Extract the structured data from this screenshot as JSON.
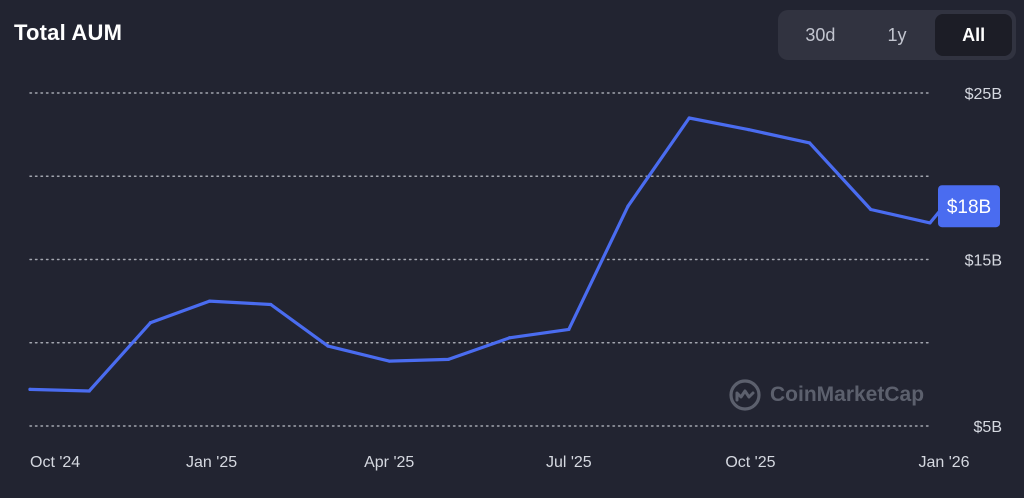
{
  "header": {
    "title": "Total AUM"
  },
  "range_tabs": [
    {
      "label": "30d",
      "active": false
    },
    {
      "label": "1y",
      "active": false
    },
    {
      "label": "All",
      "active": true
    }
  ],
  "watermark": {
    "text": "CoinMarketCap",
    "icon": "coinmarketcap-logo-icon"
  },
  "colors": {
    "background": "#222431",
    "line": "#4a6cf0",
    "badge": "#4a6cf0",
    "grid": "#cfd2da",
    "text": "#d5d8e0"
  },
  "chart_data": {
    "type": "line",
    "title": "Total AUM",
    "y_unit": "USD billions",
    "ylim": [
      5,
      25
    ],
    "y_ticks": [
      {
        "value": 25,
        "label": "$25B"
      },
      {
        "value": 15,
        "label": "$15B"
      },
      {
        "value": 5,
        "label": "$5B"
      }
    ],
    "y_gridlines": [
      25,
      20,
      15,
      10,
      5
    ],
    "grid": "horizontal dotted",
    "x_ticks": [
      {
        "date": "2024-10-01",
        "label": "Oct '24"
      },
      {
        "date": "2025-01-01",
        "label": "Jan '25"
      },
      {
        "date": "2025-04-01",
        "label": "Apr '25"
      },
      {
        "date": "2025-07-01",
        "label": "Jul '25"
      },
      {
        "date": "2025-10-01",
        "label": "Oct '25"
      },
      {
        "date": "2026-01-01",
        "label": "Jan '26"
      }
    ],
    "xlim": [
      "2024-10-01",
      "2026-01-01"
    ],
    "series": [
      {
        "points": [
          {
            "x": "2024-10-01",
            "y": 7.2
          },
          {
            "x": "2024-10-31",
            "y": 7.1
          },
          {
            "x": "2024-12-01",
            "y": 11.2
          },
          {
            "x": "2024-12-31",
            "y": 12.5
          },
          {
            "x": "2025-01-31",
            "y": 12.3
          },
          {
            "x": "2025-03-01",
            "y": 9.8
          },
          {
            "x": "2025-04-01",
            "y": 8.9
          },
          {
            "x": "2025-05-01",
            "y": 9.0
          },
          {
            "x": "2025-06-01",
            "y": 10.3
          },
          {
            "x": "2025-07-01",
            "y": 10.8
          },
          {
            "x": "2025-07-31",
            "y": 18.2
          },
          {
            "x": "2025-08-31",
            "y": 23.5
          },
          {
            "x": "2025-09-30",
            "y": 22.8
          },
          {
            "x": "2025-10-31",
            "y": 22.0
          },
          {
            "x": "2025-12-01",
            "y": 18.0
          },
          {
            "x": "2025-12-31",
            "y": 17.2
          },
          {
            "x": "2026-01-07",
            "y": 18.2
          }
        ]
      }
    ],
    "current_value_label": "$18B"
  }
}
